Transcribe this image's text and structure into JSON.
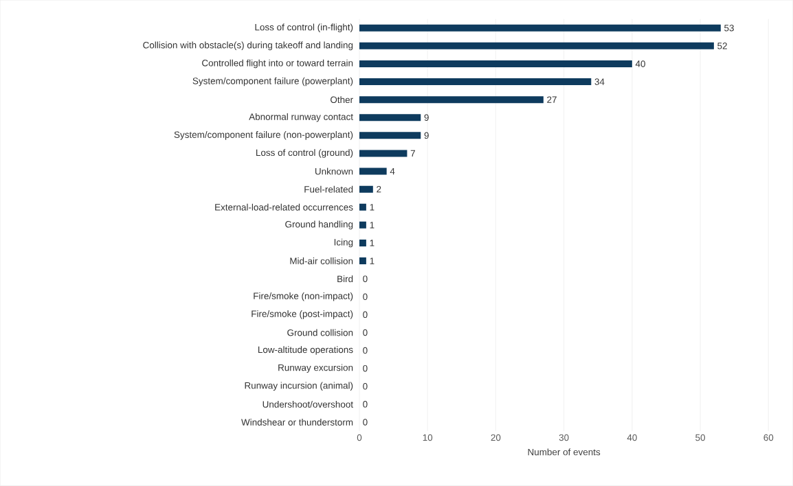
{
  "chart_data": {
    "type": "bar",
    "orientation": "horizontal",
    "xlabel": "Number of events",
    "categories": [
      "Loss of control (in-flight)",
      "Collision with obstacle(s) during takeoff and landing",
      "Controlled flight into or toward terrain",
      "System/component failure (powerplant)",
      "Other",
      "Abnormal runway contact",
      "System/component failure (non-powerplant)",
      "Loss of control (ground)",
      "Unknown",
      "Fuel-related",
      "External-load-related occurrences",
      "Ground handling",
      "Icing",
      "Mid-air collision",
      "Bird",
      "Fire/smoke (non-impact)",
      "Fire/smoke (post-impact)",
      "Ground collision",
      "Low-altitude operations",
      "Runway excursion",
      "Runway incursion (animal)",
      "Undershoot/overshoot",
      "Windshear or thunderstorm"
    ],
    "values": [
      53,
      52,
      40,
      34,
      27,
      9,
      9,
      7,
      4,
      2,
      1,
      1,
      1,
      1,
      0,
      0,
      0,
      0,
      0,
      0,
      0,
      0,
      0
    ],
    "color": "#0e3b5e",
    "xlim": [
      0,
      60
    ],
    "xticks": [
      0,
      10,
      20,
      30,
      40,
      50,
      60
    ],
    "grid": "x",
    "data_labels": true
  }
}
